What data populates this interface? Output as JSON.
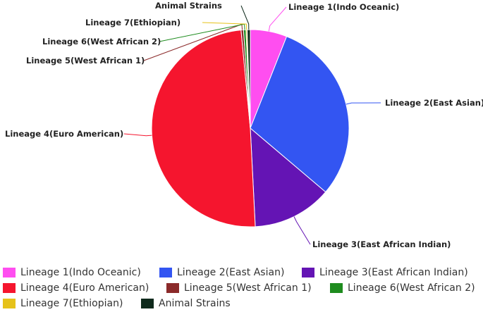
{
  "chart_data": {
    "type": "pie",
    "series": [
      {
        "name": "Lineage 1(Indo Oceanic)",
        "value": 6.0,
        "color": "#ff4ef0"
      },
      {
        "name": "Lineage 2(East Asian)",
        "value": 30.2,
        "color": "#3355f2"
      },
      {
        "name": "Lineage 3(East African Indian)",
        "value": 13.0,
        "color": "#6414b4"
      },
      {
        "name": "Lineage 4(Euro American)",
        "value": 49.3,
        "color": "#f5152e"
      },
      {
        "name": "Lineage 5(West African 1)",
        "value": 0.4,
        "color": "#8b2a2a"
      },
      {
        "name": "Lineage 6(West African 2)",
        "value": 0.4,
        "color": "#1e8c1e"
      },
      {
        "name": "Lineage 7(Ethiopian)",
        "value": 0.2,
        "color": "#e6c21a"
      },
      {
        "name": "Animal Strains",
        "value": 0.5,
        "color": "#0f2a1c"
      }
    ],
    "legend_position": "bottom"
  }
}
